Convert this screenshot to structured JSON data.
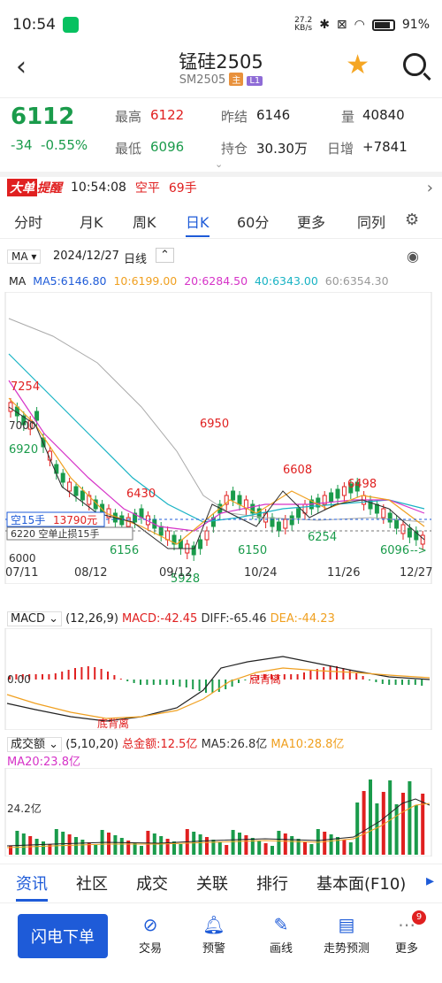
{
  "status": {
    "time": "10:54",
    "net_speed": "27.2",
    "net_unit": "KB/s",
    "battery": "91%"
  },
  "header": {
    "title": "锰硅2505",
    "code": "SM2505",
    "tag_main": "主",
    "tag_l1": "L1"
  },
  "quote": {
    "price": "6112",
    "change": "-34",
    "change_pct": "-0.55%",
    "high_label": "最高",
    "high": "6122",
    "low_label": "最低",
    "low": "6096",
    "prev_label": "昨结",
    "prev": "6146",
    "oi_label": "持仓",
    "oi": "30.30万",
    "vol_label": "量",
    "vol": "40840",
    "daily_label": "日增",
    "daily": "+7841"
  },
  "alert": {
    "badge1": "大单",
    "badge2": "提醒",
    "time": "10:54:08",
    "type": "空平",
    "lots": "69手"
  },
  "tabs": [
    "分时",
    "月K",
    "周K",
    "日K",
    "60分",
    "更多",
    "同列"
  ],
  "chart_header": {
    "indicator": "MA",
    "date": "2024/12/27",
    "period": "日线",
    "ma_label": "MA",
    "ma5": "MA5:6146.80",
    "ma10": "10:6199.00",
    "ma20": "20:6284.50",
    "ma40": "40:6343.00",
    "ma60": "60:6354.30"
  },
  "price_axis": {
    "p7254": "7254",
    "p7000": "7000",
    "p6920": "6920",
    "p6000": "6000"
  },
  "annotations": {
    "a6950": "6950",
    "a6608": "6608",
    "a6498": "6498",
    "a6430": "6430",
    "a6254": "6254",
    "a6156": "6156",
    "a6150": "6150",
    "a5928": "5928",
    "a6096": "6096",
    "arrow_down": "-->"
  },
  "order_labels": {
    "short": "空15手",
    "short_price": "13790元",
    "stop": "6220 空单止损15手"
  },
  "dates": [
    "07/11",
    "08/12",
    "09/12",
    "10/24",
    "11/26",
    "12/27"
  ],
  "macd": {
    "label": "MACD",
    "params": "(12,26,9)",
    "macd": "MACD:-42.45",
    "diff": "DIFF:-65.46",
    "dea": "DEA:-44.23",
    "zero": "0.00",
    "div1": "底背离",
    "div2": "底背离"
  },
  "volume": {
    "label": "成交额",
    "params": "(5,10,20)",
    "total": "总金额:12.5亿",
    "ma5": "MA5:26.8亿",
    "ma10": "MA10:28.8亿",
    "ma20": "MA20:23.8亿",
    "level": "24.2亿"
  },
  "bottom_tabs": [
    "资讯",
    "社区",
    "成交",
    "关联",
    "排行",
    "基本面(F10)"
  ],
  "footer": {
    "flash": "闪电下单",
    "items": [
      "交易",
      "预警",
      "画线",
      "走势预测",
      "更多"
    ],
    "badge": "9"
  },
  "colors": {
    "up": "#e02020",
    "down": "#1a9b4b",
    "accent": "#1e5bd8",
    "ma5": "#2c2c2c",
    "ma10": "#f0a020",
    "ma20": "#d633c8",
    "ma40": "#19b3c4",
    "ma60": "#999999"
  }
}
